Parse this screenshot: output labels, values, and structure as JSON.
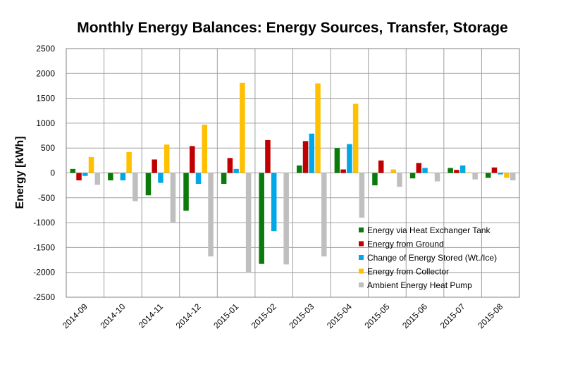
{
  "chart_data": {
    "type": "bar",
    "title": "Monthly Energy Balances: Energy Sources, Transfer, Storage",
    "xlabel": "",
    "ylabel": "Energy [kWh]",
    "ylim": [
      -2500,
      2500
    ],
    "yticks": [
      2500,
      2000,
      1500,
      1000,
      500,
      0,
      -500,
      -1000,
      -1500,
      -2000,
      -2500
    ],
    "grid": true,
    "legend_position": "bottom-right",
    "categories": [
      "2014-09",
      "2014-10",
      "2014-11",
      "2014-12",
      "2015-01",
      "2015-02",
      "2015-03",
      "2015-04",
      "2015-05",
      "2015-06",
      "2015-07",
      "2015-08"
    ],
    "series": [
      {
        "name": "Energy via Heat Exchanger Tank",
        "color": "#0a7a0a",
        "values": [
          80,
          -150,
          -450,
          -760,
          -220,
          -1830,
          150,
          500,
          -250,
          -110,
          100,
          -100
        ]
      },
      {
        "name": "Energy from Ground",
        "color": "#c00000",
        "values": [
          -150,
          -10,
          270,
          540,
          300,
          660,
          640,
          70,
          250,
          200,
          60,
          110
        ]
      },
      {
        "name": "Change of Energy Stored (Wt./Ice)",
        "color": "#00a8e8",
        "values": [
          -60,
          -150,
          -200,
          -220,
          80,
          -1170,
          790,
          580,
          0,
          100,
          150,
          -30
        ]
      },
      {
        "name": "Energy from Collector",
        "color": "#ffc000",
        "values": [
          320,
          420,
          570,
          970,
          1810,
          0,
          1800,
          1390,
          70,
          0,
          10,
          -100
        ]
      },
      {
        "name": "Ambient Energy Heat Pump",
        "color": "#bfbfbf",
        "values": [
          -240,
          -570,
          -990,
          -1680,
          -1990,
          -1840,
          -1680,
          -900,
          -280,
          -170,
          -130,
          -150
        ]
      }
    ]
  }
}
